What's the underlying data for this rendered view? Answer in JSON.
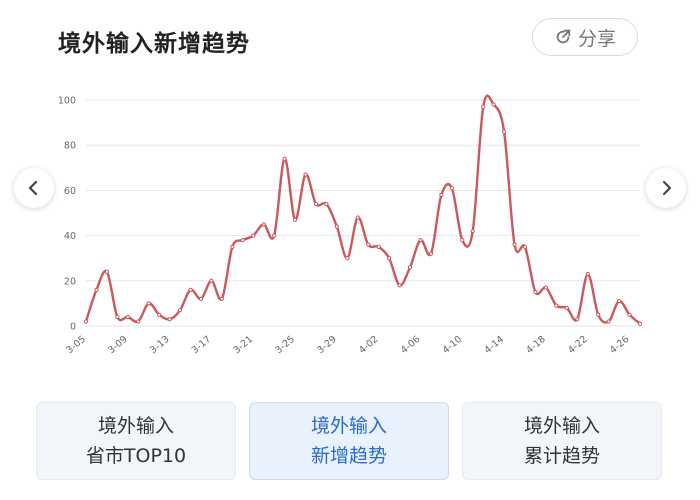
{
  "header": {
    "title": "境外输入新增趋势",
    "share_label": "分享"
  },
  "nav": {
    "prev_icon": "chevron-left-icon",
    "next_icon": "chevron-right-icon"
  },
  "tabs": [
    {
      "line1": "境外输入",
      "line2": "省市TOP10",
      "active": false
    },
    {
      "line1": "境外输入",
      "line2": "新增趋势",
      "active": true
    },
    {
      "line1": "境外输入",
      "line2": "累计趋势",
      "active": false
    }
  ],
  "colors": {
    "line": "#c9595b",
    "active_tab_text": "#2b6cc9",
    "grid": "#e6e6e6"
  },
  "chart_data": {
    "type": "line",
    "title": "境外输入新增趋势",
    "xlabel": "",
    "ylabel": "",
    "ylim": [
      0,
      100
    ],
    "yticks": [
      0,
      20,
      40,
      60,
      80,
      100
    ],
    "x_tick_labels": [
      "3-05",
      "3-09",
      "3-13",
      "3-17",
      "3-21",
      "3-25",
      "3-29",
      "4-02",
      "4-06",
      "4-10",
      "4-14",
      "4-18",
      "4-22",
      "4-26"
    ],
    "x_tick_every": 4,
    "grid": true,
    "series": [
      {
        "name": "新增",
        "values": [
          2,
          16,
          24,
          4,
          4,
          2,
          10,
          5,
          3,
          7,
          16,
          12,
          20,
          12,
          35,
          38,
          40,
          45,
          40,
          74,
          47,
          67,
          54,
          54,
          44,
          30,
          48,
          36,
          35,
          30,
          18,
          26,
          38,
          32,
          58,
          61,
          38,
          42,
          97,
          98,
          86,
          36,
          35,
          15,
          17,
          9,
          8,
          3,
          23,
          5,
          2,
          11,
          5,
          1
        ]
      }
    ]
  }
}
